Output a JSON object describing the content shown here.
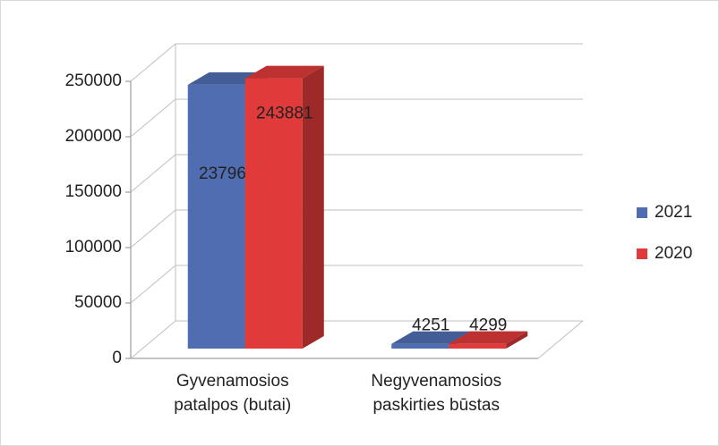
{
  "chart_data": {
    "type": "bar3d",
    "categories": [
      "Gyvenamosios patalpos (butai)",
      "Negyvenamosios paskirties būstas"
    ],
    "series": [
      {
        "name": "2021",
        "color": "#4f6db0",
        "values": [
          237962,
          4251
        ]
      },
      {
        "name": "2020",
        "color": "#e03a3a",
        "values": [
          243881,
          4299
        ]
      }
    ],
    "ylim": [
      0,
      250000
    ],
    "yticks": [
      0,
      50000,
      100000,
      150000,
      200000,
      250000
    ],
    "grid": true,
    "legend": "right"
  }
}
